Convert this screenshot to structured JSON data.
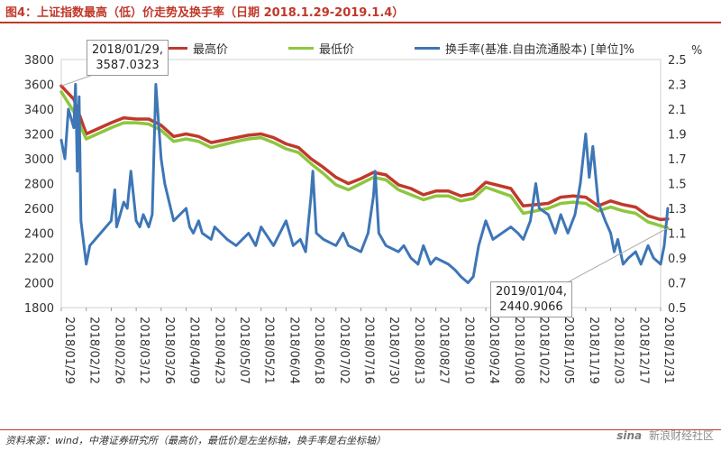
{
  "header": {
    "title": "图4：上证指数最高（低）价走势及换手率（日期 2018.1.29-2019.1.4）"
  },
  "footer": {
    "source": "资料来源：wind，中港证券研究所（最高价，最低价是左坐标轴，换手率是右坐标轴）",
    "watermark_logo": "sina",
    "watermark_text": "新浪财经社区"
  },
  "colors": {
    "high": "#c0392b",
    "low": "#8dc63f",
    "turnover": "#3e76b6",
    "title": "#c0392b",
    "axis": "#d0d0d0"
  },
  "chart_data": {
    "type": "line",
    "title": "",
    "left_axis": {
      "min": 1800,
      "max": 3800,
      "ticks": [
        "1800",
        "2000",
        "2200",
        "2400",
        "2600",
        "2800",
        "3000",
        "3200",
        "3400",
        "3600",
        "3800"
      ]
    },
    "right_axis": {
      "label": "%",
      "min": 0.5,
      "max": 2.5,
      "ticks": [
        "0.5",
        "0.7",
        "0.9",
        "1.1",
        "1.3",
        "1.5",
        "1.7",
        "1.9",
        "2.1",
        "2.3",
        "2.5"
      ]
    },
    "x_ticks": [
      "2018/01/29",
      "2018/02/12",
      "2018/02/26",
      "2018/03/12",
      "2018/03/26",
      "2018/04/09",
      "2018/04/23",
      "2018/05/07",
      "2018/05/21",
      "2018/06/04",
      "2018/06/18",
      "2018/07/02",
      "2018/07/16",
      "2018/07/30",
      "2018/08/13",
      "2018/08/27",
      "2018/09/10",
      "2018/09/24",
      "2018/10/08",
      "2018/10/22",
      "2018/11/05",
      "2018/11/19",
      "2018/12/03",
      "2018/12/17",
      "2018/12/31"
    ],
    "legend": "top",
    "grid": false,
    "series": [
      {
        "name": "最高价",
        "axis": "left",
        "color": "#c0392b",
        "values": [
          {
            "x": "2018/01/29",
            "y": 3587
          },
          {
            "x": "2018/02/05",
            "y": 3480
          },
          {
            "x": "2018/02/12",
            "y": 3200
          },
          {
            "x": "2018/02/26",
            "y": 3290
          },
          {
            "x": "2018/03/05",
            "y": 3330
          },
          {
            "x": "2018/03/12",
            "y": 3320
          },
          {
            "x": "2018/03/19",
            "y": 3320
          },
          {
            "x": "2018/03/26",
            "y": 3270
          },
          {
            "x": "2018/04/02",
            "y": 3180
          },
          {
            "x": "2018/04/09",
            "y": 3200
          },
          {
            "x": "2018/04/16",
            "y": 3180
          },
          {
            "x": "2018/04/23",
            "y": 3130
          },
          {
            "x": "2018/05/07",
            "y": 3170
          },
          {
            "x": "2018/05/14",
            "y": 3190
          },
          {
            "x": "2018/05/21",
            "y": 3200
          },
          {
            "x": "2018/05/28",
            "y": 3170
          },
          {
            "x": "2018/06/04",
            "y": 3120
          },
          {
            "x": "2018/06/11",
            "y": 3090
          },
          {
            "x": "2018/06/18",
            "y": 3000
          },
          {
            "x": "2018/06/25",
            "y": 2930
          },
          {
            "x": "2018/07/02",
            "y": 2850
          },
          {
            "x": "2018/07/09",
            "y": 2800
          },
          {
            "x": "2018/07/16",
            "y": 2840
          },
          {
            "x": "2018/07/23",
            "y": 2890
          },
          {
            "x": "2018/07/30",
            "y": 2870
          },
          {
            "x": "2018/08/06",
            "y": 2790
          },
          {
            "x": "2018/08/13",
            "y": 2760
          },
          {
            "x": "2018/08/20",
            "y": 2710
          },
          {
            "x": "2018/08/27",
            "y": 2740
          },
          {
            "x": "2018/09/03",
            "y": 2740
          },
          {
            "x": "2018/09/10",
            "y": 2700
          },
          {
            "x": "2018/09/17",
            "y": 2720
          },
          {
            "x": "2018/09/24",
            "y": 2810
          },
          {
            "x": "2018/10/08",
            "y": 2760
          },
          {
            "x": "2018/10/15",
            "y": 2620
          },
          {
            "x": "2018/10/22",
            "y": 2630
          },
          {
            "x": "2018/10/29",
            "y": 2640
          },
          {
            "x": "2018/11/05",
            "y": 2690
          },
          {
            "x": "2018/11/12",
            "y": 2700
          },
          {
            "x": "2018/11/19",
            "y": 2690
          },
          {
            "x": "2018/11/26",
            "y": 2620
          },
          {
            "x": "2018/12/03",
            "y": 2660
          },
          {
            "x": "2018/12/10",
            "y": 2630
          },
          {
            "x": "2018/12/17",
            "y": 2610
          },
          {
            "x": "2018/12/24",
            "y": 2540
          },
          {
            "x": "2018/12/31",
            "y": 2510
          },
          {
            "x": "2019/01/04",
            "y": 2515
          }
        ]
      },
      {
        "name": "最低价",
        "axis": "left",
        "color": "#8dc63f",
        "values": [
          {
            "x": "2018/01/29",
            "y": 3540
          },
          {
            "x": "2018/02/05",
            "y": 3380
          },
          {
            "x": "2018/02/12",
            "y": 3160
          },
          {
            "x": "2018/02/26",
            "y": 3250
          },
          {
            "x": "2018/03/05",
            "y": 3290
          },
          {
            "x": "2018/03/12",
            "y": 3290
          },
          {
            "x": "2018/03/19",
            "y": 3280
          },
          {
            "x": "2018/03/26",
            "y": 3230
          },
          {
            "x": "2018/04/02",
            "y": 3140
          },
          {
            "x": "2018/04/09",
            "y": 3160
          },
          {
            "x": "2018/04/16",
            "y": 3140
          },
          {
            "x": "2018/04/23",
            "y": 3090
          },
          {
            "x": "2018/05/07",
            "y": 3140
          },
          {
            "x": "2018/05/14",
            "y": 3160
          },
          {
            "x": "2018/05/21",
            "y": 3170
          },
          {
            "x": "2018/05/28",
            "y": 3130
          },
          {
            "x": "2018/06/04",
            "y": 3080
          },
          {
            "x": "2018/06/11",
            "y": 3050
          },
          {
            "x": "2018/06/18",
            "y": 2960
          },
          {
            "x": "2018/06/25",
            "y": 2880
          },
          {
            "x": "2018/07/02",
            "y": 2790
          },
          {
            "x": "2018/07/09",
            "y": 2750
          },
          {
            "x": "2018/07/16",
            "y": 2800
          },
          {
            "x": "2018/07/23",
            "y": 2850
          },
          {
            "x": "2018/07/30",
            "y": 2830
          },
          {
            "x": "2018/08/06",
            "y": 2750
          },
          {
            "x": "2018/08/13",
            "y": 2710
          },
          {
            "x": "2018/08/20",
            "y": 2670
          },
          {
            "x": "2018/08/27",
            "y": 2700
          },
          {
            "x": "2018/09/03",
            "y": 2700
          },
          {
            "x": "2018/09/10",
            "y": 2660
          },
          {
            "x": "2018/09/17",
            "y": 2680
          },
          {
            "x": "2018/09/24",
            "y": 2770
          },
          {
            "x": "2018/10/08",
            "y": 2700
          },
          {
            "x": "2018/10/15",
            "y": 2560
          },
          {
            "x": "2018/10/22",
            "y": 2580
          },
          {
            "x": "2018/10/29",
            "y": 2600
          },
          {
            "x": "2018/11/05",
            "y": 2640
          },
          {
            "x": "2018/11/12",
            "y": 2650
          },
          {
            "x": "2018/11/19",
            "y": 2640
          },
          {
            "x": "2018/11/26",
            "y": 2580
          },
          {
            "x": "2018/12/03",
            "y": 2610
          },
          {
            "x": "2018/12/10",
            "y": 2580
          },
          {
            "x": "2018/12/17",
            "y": 2560
          },
          {
            "x": "2018/12/24",
            "y": 2490
          },
          {
            "x": "2018/12/31",
            "y": 2460
          },
          {
            "x": "2019/01/04",
            "y": 2441
          }
        ]
      },
      {
        "name": "换手率(基准.自由流通股本) [单位]%",
        "axis": "right",
        "color": "#3e76b6",
        "values": [
          {
            "x": "2018/01/29",
            "y": 1.85
          },
          {
            "x": "2018/01/31",
            "y": 1.7
          },
          {
            "x": "2018/02/02",
            "y": 2.1
          },
          {
            "x": "2018/02/05",
            "y": 1.95
          },
          {
            "x": "2018/02/06",
            "y": 2.3
          },
          {
            "x": "2018/02/07",
            "y": 1.6
          },
          {
            "x": "2018/02/08",
            "y": 2.2
          },
          {
            "x": "2018/02/09",
            "y": 1.2
          },
          {
            "x": "2018/02/12",
            "y": 0.85
          },
          {
            "x": "2018/02/14",
            "y": 1.0
          },
          {
            "x": "2018/02/26",
            "y": 1.2
          },
          {
            "x": "2018/02/28",
            "y": 1.45
          },
          {
            "x": "2018/03/01",
            "y": 1.15
          },
          {
            "x": "2018/03/05",
            "y": 1.35
          },
          {
            "x": "2018/03/07",
            "y": 1.3
          },
          {
            "x": "2018/03/09",
            "y": 1.6
          },
          {
            "x": "2018/03/12",
            "y": 1.2
          },
          {
            "x": "2018/03/14",
            "y": 1.15
          },
          {
            "x": "2018/03/16",
            "y": 1.25
          },
          {
            "x": "2018/03/19",
            "y": 1.15
          },
          {
            "x": "2018/03/21",
            "y": 1.25
          },
          {
            "x": "2018/03/23",
            "y": 2.3
          },
          {
            "x": "2018/03/26",
            "y": 1.7
          },
          {
            "x": "2018/03/28",
            "y": 1.5
          },
          {
            "x": "2018/04/02",
            "y": 1.2
          },
          {
            "x": "2018/04/09",
            "y": 1.3
          },
          {
            "x": "2018/04/11",
            "y": 1.15
          },
          {
            "x": "2018/04/13",
            "y": 1.1
          },
          {
            "x": "2018/04/16",
            "y": 1.2
          },
          {
            "x": "2018/04/18",
            "y": 1.1
          },
          {
            "x": "2018/04/23",
            "y": 1.05
          },
          {
            "x": "2018/04/25",
            "y": 1.15
          },
          {
            "x": "2018/05/02",
            "y": 1.05
          },
          {
            "x": "2018/05/07",
            "y": 1.0
          },
          {
            "x": "2018/05/14",
            "y": 1.1
          },
          {
            "x": "2018/05/18",
            "y": 1.0
          },
          {
            "x": "2018/05/21",
            "y": 1.15
          },
          {
            "x": "2018/05/28",
            "y": 1.0
          },
          {
            "x": "2018/06/04",
            "y": 1.2
          },
          {
            "x": "2018/06/08",
            "y": 1.0
          },
          {
            "x": "2018/06/12",
            "y": 1.05
          },
          {
            "x": "2018/06/15",
            "y": 0.95
          },
          {
            "x": "2018/06/18",
            "y": 1.4
          },
          {
            "x": "2018/06/19",
            "y": 1.6
          },
          {
            "x": "2018/06/21",
            "y": 1.1
          },
          {
            "x": "2018/06/25",
            "y": 1.05
          },
          {
            "x": "2018/07/02",
            "y": 1.0
          },
          {
            "x": "2018/07/06",
            "y": 1.1
          },
          {
            "x": "2018/07/09",
            "y": 1.0
          },
          {
            "x": "2018/07/16",
            "y": 0.95
          },
          {
            "x": "2018/07/20",
            "y": 1.1
          },
          {
            "x": "2018/07/23",
            "y": 1.4
          },
          {
            "x": "2018/07/24",
            "y": 1.6
          },
          {
            "x": "2018/07/26",
            "y": 1.1
          },
          {
            "x": "2018/07/30",
            "y": 1.0
          },
          {
            "x": "2018/08/06",
            "y": 0.95
          },
          {
            "x": "2018/08/09",
            "y": 1.0
          },
          {
            "x": "2018/08/13",
            "y": 0.9
          },
          {
            "x": "2018/08/17",
            "y": 0.85
          },
          {
            "x": "2018/08/20",
            "y": 1.0
          },
          {
            "x": "2018/08/24",
            "y": 0.85
          },
          {
            "x": "2018/08/27",
            "y": 0.9
          },
          {
            "x": "2018/09/03",
            "y": 0.85
          },
          {
            "x": "2018/09/07",
            "y": 0.8
          },
          {
            "x": "2018/09/10",
            "y": 0.75
          },
          {
            "x": "2018/09/14",
            "y": 0.7
          },
          {
            "x": "2018/09/17",
            "y": 0.75
          },
          {
            "x": "2018/09/20",
            "y": 1.0
          },
          {
            "x": "2018/09/24",
            "y": 1.2
          },
          {
            "x": "2018/09/28",
            "y": 1.05
          },
          {
            "x": "2018/10/08",
            "y": 1.15
          },
          {
            "x": "2018/10/12",
            "y": 1.1
          },
          {
            "x": "2018/10/15",
            "y": 1.05
          },
          {
            "x": "2018/10/19",
            "y": 1.2
          },
          {
            "x": "2018/10/22",
            "y": 1.5
          },
          {
            "x": "2018/10/24",
            "y": 1.3
          },
          {
            "x": "2018/10/29",
            "y": 1.25
          },
          {
            "x": "2018/11/02",
            "y": 1.1
          },
          {
            "x": "2018/11/05",
            "y": 1.25
          },
          {
            "x": "2018/11/09",
            "y": 1.1
          },
          {
            "x": "2018/11/13",
            "y": 1.25
          },
          {
            "x": "2018/11/16",
            "y": 1.5
          },
          {
            "x": "2018/11/19",
            "y": 1.9
          },
          {
            "x": "2018/11/21",
            "y": 1.55
          },
          {
            "x": "2018/11/23",
            "y": 1.8
          },
          {
            "x": "2018/11/26",
            "y": 1.35
          },
          {
            "x": "2018/11/30",
            "y": 1.2
          },
          {
            "x": "2018/12/03",
            "y": 1.1
          },
          {
            "x": "2018/12/05",
            "y": 0.95
          },
          {
            "x": "2018/12/07",
            "y": 1.05
          },
          {
            "x": "2018/12/10",
            "y": 0.85
          },
          {
            "x": "2018/12/13",
            "y": 0.9
          },
          {
            "x": "2018/12/17",
            "y": 0.95
          },
          {
            "x": "2018/12/20",
            "y": 0.85
          },
          {
            "x": "2018/12/24",
            "y": 1.0
          },
          {
            "x": "2018/12/27",
            "y": 0.9
          },
          {
            "x": "2018/12/31",
            "y": 0.85
          },
          {
            "x": "2019/01/02",
            "y": 1.0
          },
          {
            "x": "2019/01/04",
            "y": 1.3
          }
        ]
      }
    ],
    "annotations": [
      {
        "target": "max",
        "date_text": "2018/01/29,",
        "value_text": "3587.0323"
      },
      {
        "target": "min",
        "date_text": "2019/01/04,",
        "value_text": "2440.9066"
      }
    ]
  }
}
